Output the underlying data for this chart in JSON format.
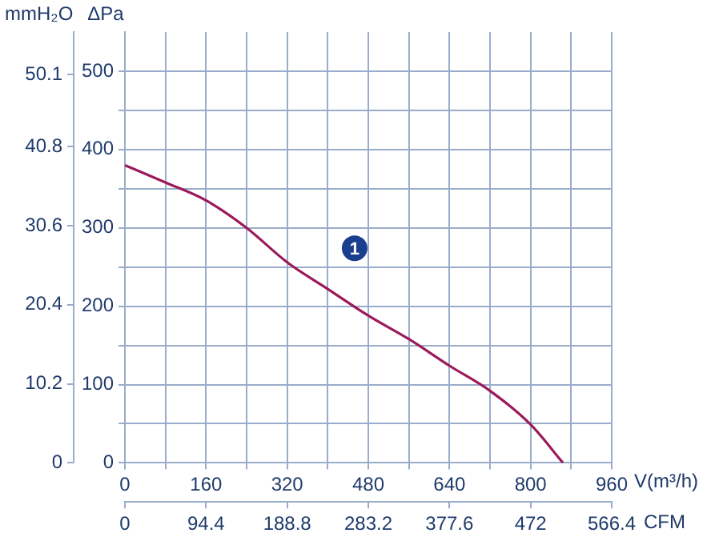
{
  "chart_data": {
    "type": "line",
    "xlabel": "V(m³/h)",
    "x2label": "CFM",
    "ylabel": "ΔPa",
    "y2label": "mmH₂O",
    "x": [
      0,
      80,
      160,
      240,
      320,
      400,
      480,
      560,
      640,
      720,
      800,
      864
    ],
    "series": [
      {
        "color": "#9b1b5a",
        "values": [
          380,
          358,
          335,
          300,
          256,
          222,
          188,
          158,
          124,
          92,
          49,
          0
        ]
      }
    ],
    "xlim": [
      0,
      960
    ],
    "xticks": [
      0,
      {
        "value": 80,
        "label": null
      },
      160,
      {
        "value": 240,
        "label": null
      },
      320,
      {
        "value": 400,
        "label": null
      },
      480,
      {
        "value": 560,
        "label": null
      },
      640,
      {
        "value": 720,
        "label": null
      },
      800,
      {
        "value": 880,
        "label": null
      },
      960
    ],
    "x2lim": [
      0,
      566.4
    ],
    "x2ticks": [
      0,
      94.4,
      188.8,
      283.2,
      377.6,
      472,
      566.4
    ],
    "ylim": [
      0,
      550
    ],
    "yticks": [
      0,
      {
        "value": 50,
        "label": null
      },
      100,
      {
        "value": 150,
        "label": null
      },
      200,
      {
        "value": 250,
        "label": null
      },
      300,
      {
        "value": 350,
        "label": null
      },
      400,
      {
        "value": 450,
        "label": null
      },
      500
    ],
    "y2lim": [
      0,
      55.6
    ],
    "y2ticks": [
      0,
      10.2,
      20.4,
      30.6,
      40.8,
      50.1
    ],
    "annotations": [
      {
        "text": "1",
        "x": 453,
        "y": 274
      }
    ],
    "grid": true,
    "marker": "none",
    "line_style": "solid",
    "legend": false
  }
}
